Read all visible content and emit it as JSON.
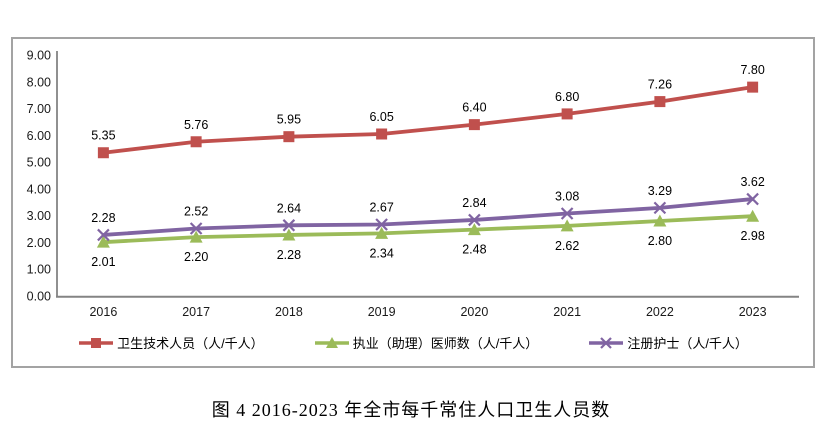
{
  "figure": {
    "caption": "图 4 2016-2023 年全市每千常住人口卫生人员数"
  },
  "chart_data": {
    "type": "line",
    "categories": [
      "2016",
      "2017",
      "2018",
      "2019",
      "2020",
      "2021",
      "2022",
      "2023"
    ],
    "series": [
      {
        "name": "卫生技术人员（人/千人）",
        "values": [
          5.35,
          5.76,
          5.95,
          6.05,
          6.4,
          6.8,
          7.26,
          7.8
        ],
        "color": "#c0504d",
        "marker": "square",
        "label_position": "above"
      },
      {
        "name": "执业（助理）医师数（人/千人）",
        "values": [
          2.01,
          2.2,
          2.28,
          2.34,
          2.48,
          2.62,
          2.8,
          2.98
        ],
        "color": "#9bbb59",
        "marker": "triangle",
        "label_position": "below"
      },
      {
        "name": "注册护士（人/千人）",
        "values": [
          2.28,
          2.52,
          2.64,
          2.67,
          2.84,
          3.08,
          3.29,
          3.62
        ],
        "color": "#8064a2",
        "marker": "x",
        "label_position": "above"
      }
    ],
    "ylim": [
      0,
      9
    ],
    "yticks": [
      "0.00",
      "1.00",
      "2.00",
      "3.00",
      "4.00",
      "5.00",
      "6.00",
      "7.00",
      "8.00",
      "9.00"
    ],
    "value_label_decimals": 2,
    "grid": false,
    "legend_position": "bottom",
    "axis_color": "#848484",
    "tick_label_color": "#1a1a1a",
    "data_label_color": "#000000"
  }
}
